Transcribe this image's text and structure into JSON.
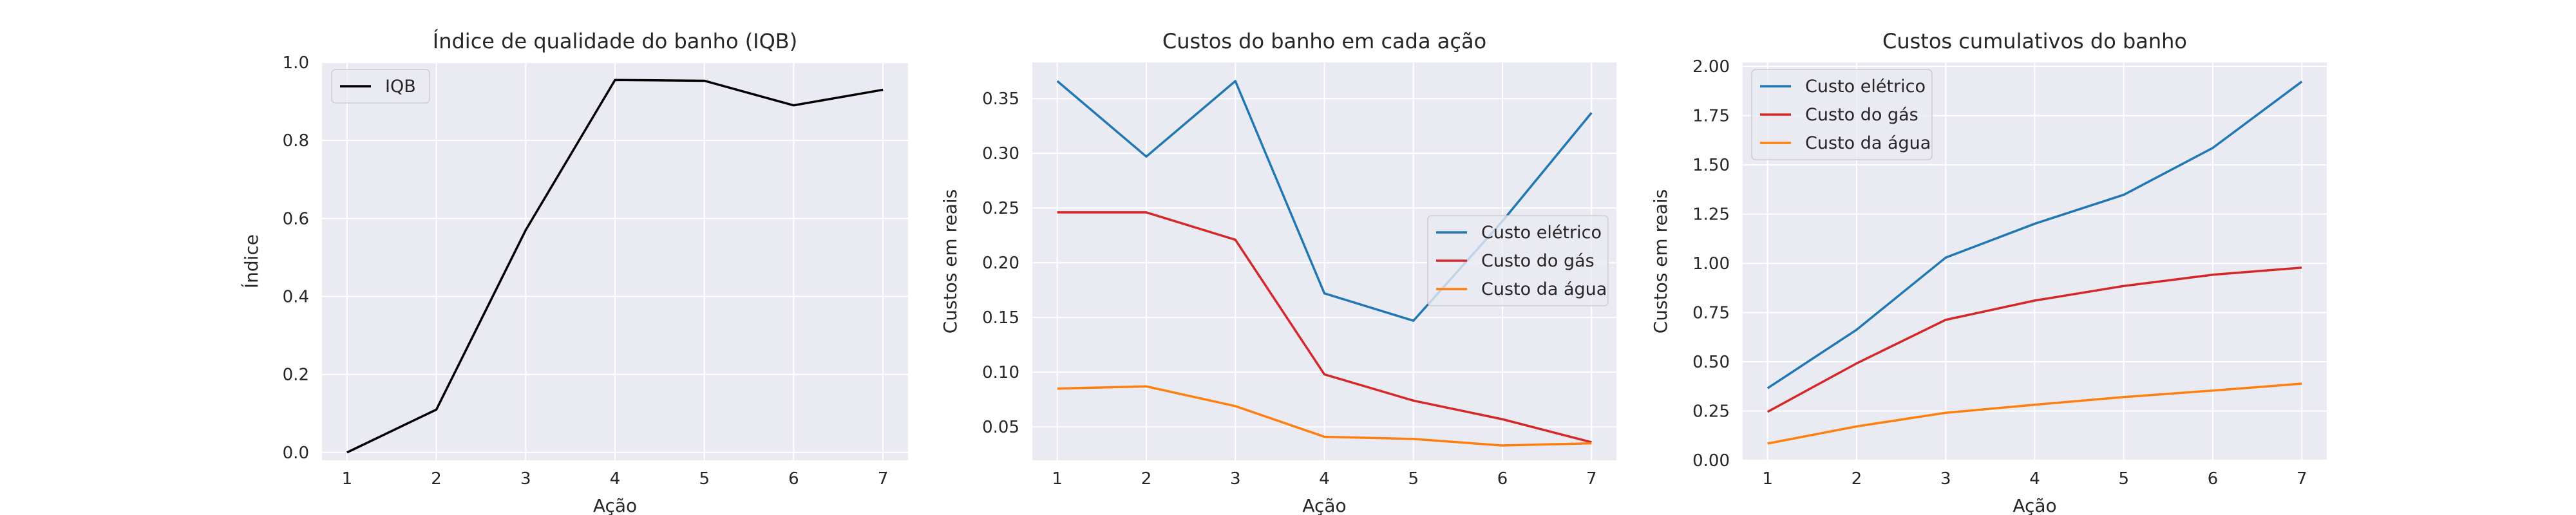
{
  "chart_data": [
    {
      "type": "line",
      "title": "Índice de qualidade do banho (IQB)",
      "xlabel": "Ação",
      "ylabel": "Índice",
      "x": [
        1,
        2,
        3,
        4,
        5,
        6,
        7
      ],
      "xticks": [
        "1",
        "2",
        "3",
        "4",
        "5",
        "6",
        "7"
      ],
      "yticks": [
        "0.0",
        "0.2",
        "0.4",
        "0.6",
        "0.8",
        "1.0"
      ],
      "ylim": [
        -0.02,
        1.0
      ],
      "grid": true,
      "legend_position": "upper-left",
      "series": [
        {
          "name": "IQB",
          "color": "#000000",
          "values": [
            0.0,
            0.11,
            0.57,
            0.955,
            0.953,
            0.89,
            0.93
          ]
        }
      ]
    },
    {
      "type": "line",
      "title": "Custos do banho em cada ação",
      "xlabel": "Ação",
      "ylabel": "Custos em reais",
      "x": [
        1,
        2,
        3,
        4,
        5,
        6,
        7
      ],
      "xticks": [
        "1",
        "2",
        "3",
        "4",
        "5",
        "6",
        "7"
      ],
      "yticks": [
        "0.05",
        "0.10",
        "0.15",
        "0.20",
        "0.25",
        "0.30",
        "0.35"
      ],
      "ylim": [
        0.0195,
        0.383
      ],
      "grid": true,
      "legend_position": "center-right",
      "series": [
        {
          "name": "Custo elétrico",
          "color": "#1f77b4",
          "values": [
            0.366,
            0.297,
            0.366,
            0.172,
            0.147,
            0.238,
            0.337
          ]
        },
        {
          "name": "Custo do gás",
          "color": "#d62728",
          "values": [
            0.246,
            0.246,
            0.221,
            0.098,
            0.074,
            0.057,
            0.036
          ]
        },
        {
          "name": "Custo da água",
          "color": "#ff7f0e",
          "values": [
            0.085,
            0.087,
            0.069,
            0.041,
            0.039,
            0.033,
            0.035
          ]
        }
      ]
    },
    {
      "type": "line",
      "title": "Custos cumulativos do banho",
      "xlabel": "Ação",
      "ylabel": "Custos em reais",
      "x": [
        1,
        2,
        3,
        4,
        5,
        6,
        7
      ],
      "xticks": [
        "1",
        "2",
        "3",
        "4",
        "5",
        "6",
        "7"
      ],
      "yticks": [
        "0.00",
        "0.25",
        "0.50",
        "0.75",
        "1.00",
        "1.25",
        "1.50",
        "1.75",
        "2.00"
      ],
      "ylim": [
        0.0,
        2.02
      ],
      "grid": true,
      "legend_position": "upper-left",
      "series": [
        {
          "name": "Custo elétrico",
          "color": "#1f77b4",
          "values": [
            0.366,
            0.663,
            1.029,
            1.201,
            1.348,
            1.586,
            1.923
          ]
        },
        {
          "name": "Custo do gás",
          "color": "#d62728",
          "values": [
            0.246,
            0.492,
            0.713,
            0.811,
            0.885,
            0.942,
            0.978
          ]
        },
        {
          "name": "Custo da água",
          "color": "#ff7f0e",
          "values": [
            0.085,
            0.172,
            0.241,
            0.282,
            0.321,
            0.354,
            0.389
          ]
        }
      ]
    }
  ]
}
